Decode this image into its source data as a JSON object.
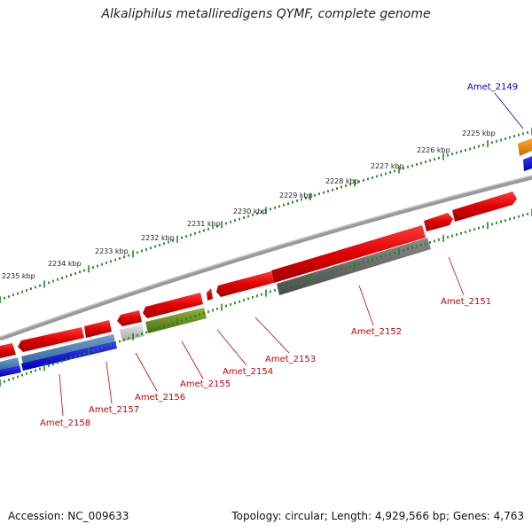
{
  "title": "Alkaliphilus metalliredigens QYMF, complete genome",
  "footer": {
    "accession": "Accession: NC_009633",
    "summary": "Topology: circular; Length: 4,929,566 bp; Genes: 4,763"
  },
  "colors": {
    "forward_gene": "#e00000",
    "reverse_gene": "#0000ee",
    "tick": "#1a8a1a",
    "backbone": "#888888",
    "label_red": "#cc0000",
    "label_blue": "#0000cc",
    "gc_gray": "#666666",
    "gc_olive": "#6b8e23",
    "orange": "#f08a00",
    "steelblue": "#4a7fb5",
    "lightgray": "#c8c8c8"
  },
  "kbp_labels": [
    "2225 kbp",
    "2226 kbp",
    "2227 kbp",
    "2228 kbp",
    "2229 kbp",
    "2230 kbp",
    "2231 kbp",
    "2232 kbp",
    "2233 kbp",
    "2234 kbp",
    "2235 kbp"
  ],
  "gene_labels": [
    "Amet_2149",
    "Amet_2151",
    "Amet_2152",
    "Amet_2153",
    "Amet_2154",
    "Amet_2155",
    "Amet_2156",
    "Amet_2157",
    "Amet_2158"
  ]
}
